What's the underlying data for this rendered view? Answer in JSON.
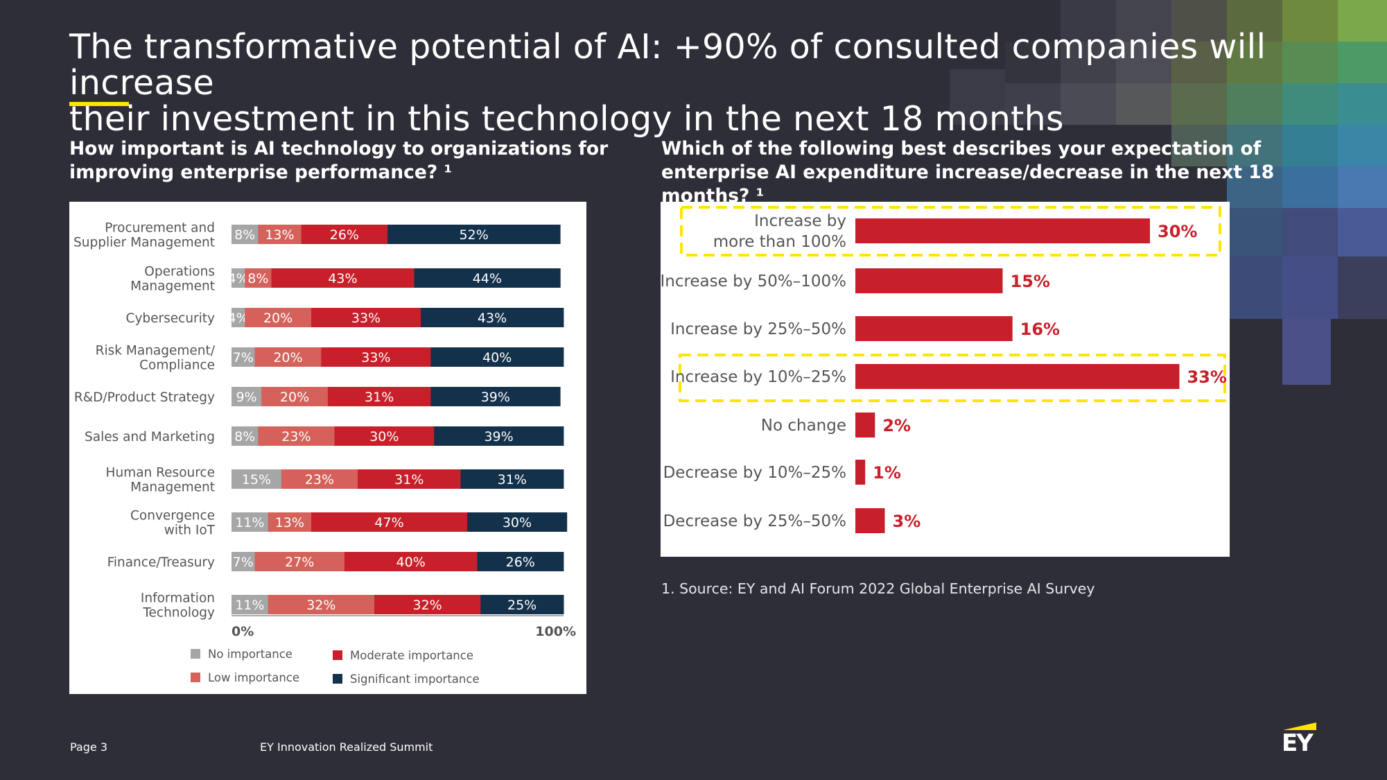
{
  "title_line1": "The transformative potential of AI: +90% of consulted companies will increase",
  "title_line2": "their investment in this technology in the next 18 months",
  "left": {
    "question": "How important is AI technology to organizations for improving enterprise performance? ¹"
  },
  "right": {
    "question": "Which of the following best describes your expectation of enterprise AI expenditure increase/decrease in the next 18 months? ¹"
  },
  "footnote": "1. Source: EY and AI Forum 2022 Global Enterprise AI Survey",
  "footer": {
    "page": "Page 3",
    "event": "EY Innovation Realized Summit",
    "logo": "EY"
  },
  "colors": {
    "background": "#2e2e38",
    "accent_yellow": "#ffe600",
    "no_importance": "#a6a6a6",
    "low_importance": "#d4625a",
    "moderate_importance": "#c8202a",
    "significant_importance": "#13314b"
  },
  "chart_data": [
    {
      "type": "bar",
      "orientation": "horizontal",
      "stacked": true,
      "categories": [
        [
          "Procurement and",
          "Supplier Management"
        ],
        [
          "Operations",
          "Management"
        ],
        [
          "Cybersecurity"
        ],
        [
          "Risk Management/",
          "Compliance"
        ],
        [
          "R&D/Product Strategy"
        ],
        [
          "Sales and Marketing"
        ],
        [
          "Human Resource",
          "Management"
        ],
        [
          "Convergence",
          "with IoT"
        ],
        [
          "Finance/Treasury"
        ],
        [
          "Information",
          "Technology"
        ]
      ],
      "series": [
        {
          "name": "No importance",
          "color": "#a6a6a6",
          "values": [
            8,
            4,
            4,
            7,
            9,
            8,
            15,
            11,
            7,
            11
          ]
        },
        {
          "name": "Low importance",
          "color": "#d4625a",
          "values": [
            13,
            8,
            20,
            20,
            20,
            23,
            23,
            13,
            27,
            32
          ]
        },
        {
          "name": "Moderate importance",
          "color": "#c8202a",
          "values": [
            26,
            43,
            33,
            33,
            31,
            30,
            31,
            47,
            40,
            32
          ]
        },
        {
          "name": "Significant importance",
          "color": "#13314b",
          "values": [
            52,
            44,
            43,
            40,
            39,
            39,
            31,
            30,
            26,
            25
          ]
        }
      ],
      "value_suffix": "%",
      "xlim": [
        0,
        100
      ],
      "x_tick_labels": [
        "0%",
        "100%"
      ],
      "legend_position": "bottom",
      "legend_order": [
        "No importance",
        "Low importance",
        "Moderate importance",
        "Significant importance"
      ]
    },
    {
      "type": "bar",
      "orientation": "horizontal",
      "categories": [
        [
          "Increase by",
          "more than 100%"
        ],
        [
          "Increase by 50%–100%"
        ],
        [
          "Increase by 25%–50%"
        ],
        [
          "Increase by 10%–25%"
        ],
        [
          "No change"
        ],
        [
          "Decrease by 10%–25%"
        ],
        [
          "Decrease by 25%–50%"
        ]
      ],
      "values": [
        30,
        15,
        16,
        33,
        2,
        1,
        3
      ],
      "value_suffix": "%",
      "bar_color": "#c8202a",
      "highlighted_categories": [
        0,
        3
      ],
      "highlight_color": "#ffe600"
    }
  ]
}
